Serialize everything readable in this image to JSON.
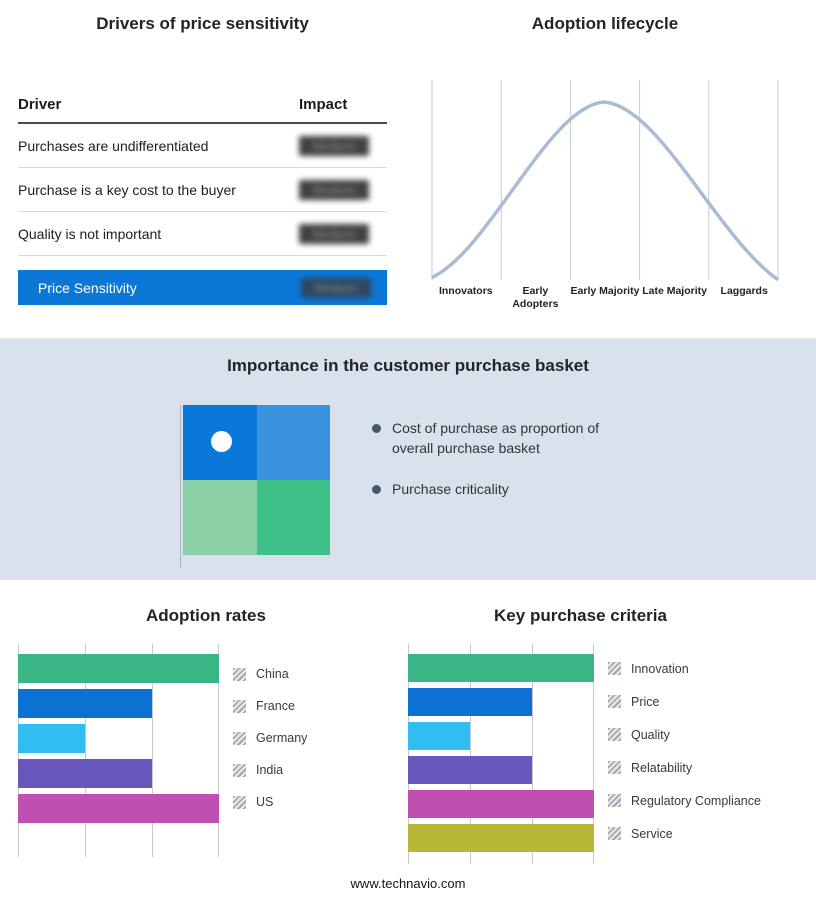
{
  "drivers": {
    "title": "Drivers of price sensitivity",
    "col_driver": "Driver",
    "col_impact": "Impact",
    "rows": [
      {
        "driver": "Purchases are undifferentiated",
        "impact": "Medium"
      },
      {
        "driver": "Purchase is a key cost to the buyer",
        "impact": "Medium"
      },
      {
        "driver": "Quality is not important",
        "impact": "Medium"
      }
    ],
    "summary": {
      "label": "Price Sensitivity",
      "impact": "Medium"
    }
  },
  "basket": {
    "title": "Importance in the customer purchase basket",
    "bullets": [
      "Cost of purchase as proportion of overall purchase basket",
      "Purchase criticality"
    ]
  },
  "footer": {
    "url": "www.technavio.com"
  },
  "colors": {
    "band_bg": "#d9e1ed",
    "primary_blue": "#0b78d7",
    "quadrant": [
      "#0a78d8",
      "#3a93de",
      "#8ad1a8",
      "#3fc18a"
    ],
    "bullet_dot": "#45576b"
  },
  "chart_data": [
    {
      "type": "bar",
      "orientation": "horizontal",
      "title": "Adoption rates",
      "categories": [
        "China",
        "France",
        "Germany",
        "India",
        "US"
      ],
      "values": [
        3,
        2,
        1,
        2,
        3
      ],
      "xlim": [
        0,
        3
      ],
      "colors": [
        "#3ab586",
        "#0b72d4",
        "#31bdf2",
        "#6a57be",
        "#c04fb2"
      ],
      "grid": true,
      "legend_position": "right",
      "value_labels": false
    },
    {
      "type": "bar",
      "orientation": "horizontal",
      "title": "Key purchase criteria",
      "categories": [
        "Innovation",
        "Price",
        "Quality",
        "Relatability",
        "Regulatory Compliance",
        "Service"
      ],
      "values": [
        3,
        2,
        1,
        2,
        3,
        3
      ],
      "xlim": [
        0,
        3
      ],
      "colors": [
        "#3ab586",
        "#0b72d4",
        "#31bdf2",
        "#6a57be",
        "#c04fb2",
        "#b7b838"
      ],
      "grid": true,
      "legend_position": "right",
      "value_labels": false
    },
    {
      "type": "line",
      "title": "Adoption lifecycle",
      "categories": [
        "Innovators",
        "Early Adopters",
        "Early Majority",
        "Late Majority",
        "Laggards"
      ],
      "relative_heights": [
        0.15,
        0.65,
        1.0,
        0.65,
        0.1
      ],
      "color": "#a9bcd6",
      "description": "Bell curve peaking at Early Majority, drawn over 5 vertical grid sections"
    }
  ]
}
